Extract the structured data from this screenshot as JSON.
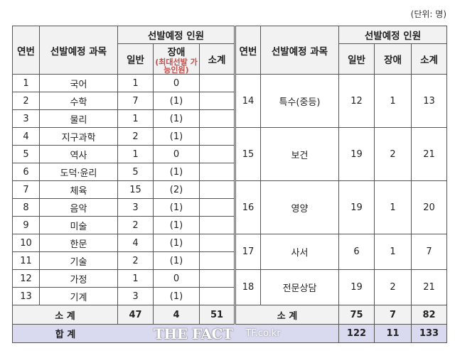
{
  "unit_label": "(단위: 명)",
  "headers": {
    "no": "연번",
    "subject": "선발예정 과목",
    "planned": "선발예정 인원",
    "general": "일반",
    "disabled": "장애",
    "disabled_note": "(최대선발 가능인원)",
    "subtotal": "소계"
  },
  "left_rows": [
    {
      "no": "1",
      "subject": "국어",
      "general": "1",
      "disabled": "0"
    },
    {
      "no": "2",
      "subject": "수학",
      "general": "7",
      "disabled": "(1)"
    },
    {
      "no": "3",
      "subject": "물리",
      "general": "1",
      "disabled": "(1)"
    },
    {
      "no": "4",
      "subject": "지구과학",
      "general": "2",
      "disabled": "(1)"
    },
    {
      "no": "5",
      "subject": "역사",
      "general": "1",
      "disabled": "0"
    },
    {
      "no": "6",
      "subject": "도덕·윤리",
      "general": "5",
      "disabled": "(1)"
    },
    {
      "no": "7",
      "subject": "체육",
      "general": "15",
      "disabled": "(2)"
    },
    {
      "no": "8",
      "subject": "음악",
      "general": "3",
      "disabled": "(1)"
    },
    {
      "no": "9",
      "subject": "미술",
      "general": "2",
      "disabled": "(1)"
    },
    {
      "no": "10",
      "subject": "한문",
      "general": "4",
      "disabled": "(1)"
    },
    {
      "no": "11",
      "subject": "기술",
      "general": "2",
      "disabled": "(1)"
    },
    {
      "no": "12",
      "subject": "가정",
      "general": "1",
      "disabled": "0"
    },
    {
      "no": "13",
      "subject": "기계",
      "general": "3",
      "disabled": "(1)"
    }
  ],
  "right_rows": [
    {
      "no": "14",
      "subject": "특수(중등)",
      "general": "12",
      "disabled": "1",
      "subtotal": "13"
    },
    {
      "no": "15",
      "subject": "보건",
      "general": "19",
      "disabled": "2",
      "subtotal": "21"
    },
    {
      "no": "16",
      "subject": "영양",
      "general": "19",
      "disabled": "1",
      "subtotal": "20"
    },
    {
      "no": "17",
      "subject": "사서",
      "general": "6",
      "disabled": "1",
      "subtotal": "7"
    },
    {
      "no": "18",
      "subject": "전문상담",
      "general": "19",
      "disabled": "2",
      "subtotal": "21"
    }
  ],
  "left_subtotal": {
    "label": "소 계",
    "general": "47",
    "disabled": "4",
    "subtotal": "51"
  },
  "right_subtotal": {
    "label": "소 계",
    "general": "75",
    "disabled": "7",
    "subtotal": "82"
  },
  "total": {
    "label": "합 계",
    "general": "122",
    "disabled": "11",
    "subtotal": "133"
  },
  "watermark": {
    "logo": "THE FACT",
    "site": "TF.co.kr"
  }
}
